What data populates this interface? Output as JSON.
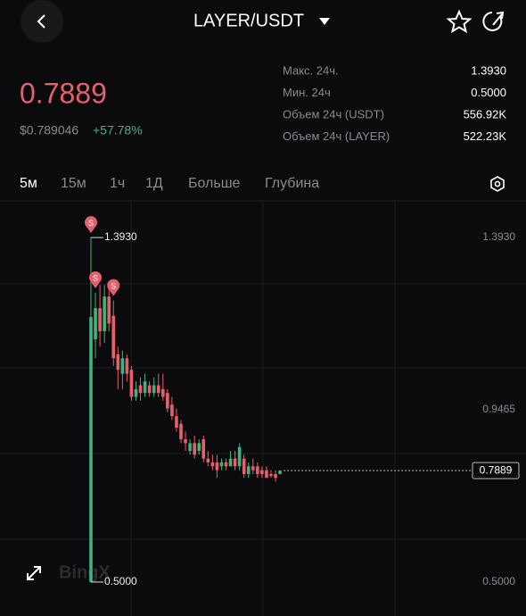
{
  "header": {
    "title": "LAYER/USDT"
  },
  "ticker": {
    "price": "0.7889",
    "usd_price": "$0.789046",
    "change": "+57.78%"
  },
  "stats": [
    [
      "Макс. 24ч.",
      "1.3930"
    ],
    [
      "Мин. 24ч",
      "0.5000"
    ],
    [
      "Объем 24ч (USDT)",
      "556.92K"
    ],
    [
      "Объем 24ч (LAYER)",
      "522.23K"
    ]
  ],
  "tabs": [
    "5м",
    "15м",
    "1ч",
    "1Д",
    "Больше",
    "Глубина"
  ],
  "chart_data": {
    "type": "candlestick",
    "watermark": "BingX",
    "up_color": "#3fb37f",
    "down_color": "#e5606a",
    "ylim": [
      0.412,
      1.488
    ],
    "yticks": [
      {
        "value": 1.393,
        "label": "1.3930"
      },
      {
        "value": 0.9465,
        "label": "0.9465"
      },
      {
        "value": 0.5,
        "label": "0.5000"
      }
    ],
    "ygrid": [
      1.273,
      1.055,
      0.833,
      0.611
    ],
    "open": [
      0.5,
      1.129,
      1.21,
      1.15,
      1.24,
      1.19,
      1.09,
      1.04,
      1.08,
      1.05,
      0.98,
      1.01,
      0.99,
      1.01,
      0.99,
      1.01,
      1.0,
      0.99,
      0.96,
      0.93,
      0.91,
      0.87,
      0.84,
      0.86,
      0.84,
      0.87,
      0.82,
      0.81,
      0.81,
      0.8,
      0.81,
      0.8,
      0.82,
      0.8,
      0.82,
      0.78,
      0.8,
      0.8,
      0.79,
      0.79,
      0.78,
      0.78,
      0.78
    ],
    "high": [
      1.393,
      1.25,
      1.27,
      1.27,
      1.26,
      1.23,
      1.11,
      1.1,
      1.09,
      1.06,
      1.02,
      1.03,
      1.04,
      1.02,
      1.03,
      1.04,
      1.04,
      1.0,
      0.98,
      0.95,
      0.92,
      0.89,
      0.87,
      0.88,
      0.87,
      0.88,
      0.84,
      0.83,
      0.83,
      0.82,
      0.82,
      0.84,
      0.84,
      0.86,
      0.83,
      0.81,
      0.82,
      0.81,
      0.8,
      0.8,
      0.79,
      0.79,
      0.79
    ],
    "low": [
      0.5,
      1.08,
      1.11,
      1.12,
      1.15,
      1.06,
      1.0,
      1.0,
      1.02,
      0.97,
      0.97,
      0.97,
      0.98,
      0.98,
      0.98,
      0.98,
      0.97,
      0.94,
      0.92,
      0.89,
      0.86,
      0.84,
      0.83,
      0.82,
      0.83,
      0.81,
      0.8,
      0.79,
      0.77,
      0.79,
      0.79,
      0.8,
      0.79,
      0.79,
      0.77,
      0.77,
      0.78,
      0.77,
      0.77,
      0.77,
      0.77,
      0.76,
      0.78
    ],
    "close": [
      1.187,
      1.21,
      1.15,
      1.24,
      1.17,
      1.08,
      1.05,
      1.08,
      1.04,
      0.98,
      1.0,
      0.99,
      1.02,
      0.99,
      1.01,
      0.99,
      0.98,
      0.95,
      0.93,
      0.9,
      0.87,
      0.86,
      0.86,
      0.83,
      0.86,
      0.82,
      0.81,
      0.8,
      0.79,
      0.81,
      0.8,
      0.82,
      0.8,
      0.85,
      0.78,
      0.8,
      0.79,
      0.78,
      0.78,
      0.77,
      0.775,
      0.77,
      0.7889
    ],
    "annotations": [
      {
        "value": 1.393,
        "label": "1.3930"
      },
      {
        "value": 0.5,
        "label": "0.5000"
      }
    ],
    "last_price": {
      "value": 0.7889,
      "label": "0.7889"
    },
    "markers": [
      "S",
      "S",
      "S"
    ]
  }
}
